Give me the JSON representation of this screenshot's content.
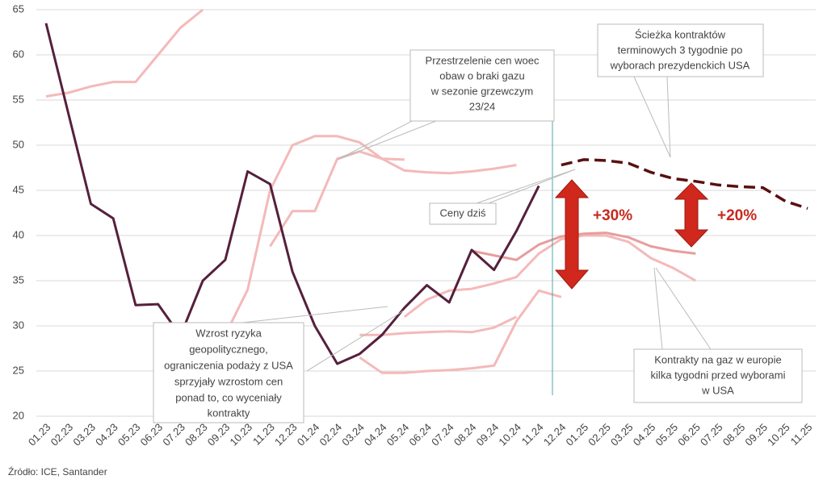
{
  "chart_data": {
    "type": "line",
    "categories": [
      "01.23",
      "02.23",
      "03.23",
      "04.23",
      "05.23",
      "06.23",
      "07.23",
      "08.23",
      "09.23",
      "10.23",
      "11.23",
      "12.23",
      "01.24",
      "02.24",
      "03.24",
      "04.24",
      "05.24",
      "06.24",
      "07.24",
      "08.24",
      "09.24",
      "10.24",
      "11.24",
      "12.24",
      "01.25",
      "02.25",
      "03.25",
      "04.25",
      "05.25",
      "06.25",
      "07.25",
      "08.25",
      "09.25",
      "10.25",
      "11.25"
    ],
    "ylim": [
      20,
      65
    ],
    "yticks": [
      20,
      25,
      30,
      35,
      40,
      45,
      50,
      55,
      60,
      65
    ],
    "grid": true,
    "series": [
      {
        "color": "#f4b9b9",
        "values": [
          55.4,
          55.8,
          56.5,
          57,
          57,
          60,
          63,
          65,
          null,
          null,
          null,
          null,
          null,
          null,
          null,
          null,
          null,
          null,
          null,
          null,
          null,
          null,
          null,
          null,
          null,
          null,
          null,
          null,
          null,
          null,
          null,
          null,
          null,
          null,
          null
        ]
      },
      {
        "color": "#f4b9b9",
        "values": [
          null,
          null,
          null,
          null,
          null,
          null,
          null,
          null,
          29,
          34,
          45,
          50,
          51,
          51,
          50.3,
          48.5,
          47.2,
          47,
          46.9,
          47.1,
          47.4,
          47.8,
          null,
          null,
          null,
          null,
          null,
          null,
          null,
          null,
          null,
          null,
          null,
          null,
          null
        ]
      },
      {
        "color": "#f4b9b9",
        "values": [
          null,
          null,
          null,
          null,
          null,
          null,
          null,
          null,
          null,
          null,
          38.8,
          42.7,
          42.7,
          48.5,
          49.3,
          48.5,
          48.4,
          null,
          null,
          null,
          null,
          null,
          null,
          null,
          null,
          null,
          null,
          null,
          null,
          null,
          null,
          null,
          null,
          null,
          null
        ]
      },
      {
        "color": "#f4b9b9",
        "values": [
          null,
          null,
          null,
          null,
          null,
          null,
          null,
          null,
          null,
          null,
          null,
          null,
          null,
          null,
          29,
          29,
          29.2,
          29.3,
          29.4,
          29.3,
          29.8,
          31,
          null,
          null,
          null,
          null,
          null,
          null,
          null,
          null,
          null,
          null,
          null,
          null,
          null
        ]
      },
      {
        "color": "#f4b9b9",
        "values": [
          null,
          null,
          null,
          null,
          null,
          null,
          null,
          null,
          null,
          null,
          null,
          null,
          null,
          null,
          26.5,
          24.8,
          24.8,
          25,
          25.1,
          25.3,
          25.6,
          30.5,
          33.9,
          33.2,
          null,
          null,
          null,
          null,
          null,
          null,
          null,
          null,
          null,
          null,
          null
        ]
      },
      {
        "color": "#f4b9b9",
        "values": [
          null,
          null,
          null,
          null,
          null,
          null,
          null,
          null,
          null,
          null,
          null,
          null,
          null,
          null,
          null,
          null,
          31,
          32.9,
          33.9,
          34.1,
          34.7,
          35.4,
          38,
          39.6,
          40,
          40,
          39.3,
          37.5,
          36.4,
          35,
          null,
          null,
          null,
          null,
          null
        ]
      },
      {
        "color": "#e89d9d",
        "values": [
          null,
          null,
          null,
          null,
          null,
          null,
          null,
          null,
          null,
          null,
          null,
          null,
          null,
          null,
          null,
          null,
          null,
          null,
          null,
          38.3,
          37.8,
          37.3,
          39,
          39.9,
          40.2,
          40.3,
          39.8,
          38.8,
          38.3,
          38,
          null,
          null,
          null,
          null,
          null
        ]
      },
      {
        "color": "#55203c",
        "values": [
          63.5,
          53.5,
          43.5,
          41.9,
          32.3,
          32.4,
          28.9,
          35,
          37.3,
          47.1,
          45.7,
          36,
          30,
          25.8,
          26.9,
          29,
          32,
          34.5,
          32.6,
          38.4,
          36.2,
          40.5,
          45.5,
          null,
          null,
          null,
          null,
          null,
          null,
          null,
          null,
          null,
          null,
          null,
          null
        ]
      },
      {
        "color": "#5a0f0f",
        "dashed": true,
        "values": [
          null,
          null,
          null,
          null,
          null,
          null,
          null,
          null,
          null,
          null,
          null,
          null,
          null,
          null,
          null,
          null,
          null,
          null,
          null,
          null,
          null,
          null,
          null,
          47.8,
          48.4,
          48.3,
          48,
          47,
          46.3,
          46,
          45.6,
          45.4,
          45.3,
          43.8,
          43
        ]
      }
    ],
    "annotations": [
      {
        "lines": [
          "Ścieżka kontraktów",
          "terminowych 3 tygodnie po",
          "wyborach prezydenckich USA"
        ]
      },
      {
        "lines": [
          "Przestrzelenie cen woec",
          "obaw o braki gazu",
          "w sezonie grzewczym",
          "23/24"
        ]
      },
      {
        "lines": [
          "Ceny dziś"
        ]
      },
      {
        "lines": [
          "Wzrost ryzyka",
          "geopolitycznego,",
          "ograniczenia podaży z USA",
          "sprzyjały wzrostom cen",
          "ponad to, co wyceniały",
          "kontrakty"
        ]
      },
      {
        "lines": [
          "Kontrakty na gaz w europie",
          "kilka tygodni przed wyborami",
          "w USA"
        ]
      },
      {
        "lines": [
          "+30%"
        ]
      },
      {
        "lines": [
          "+20%"
        ]
      }
    ],
    "source": "Źródło: ICE, Santander"
  }
}
